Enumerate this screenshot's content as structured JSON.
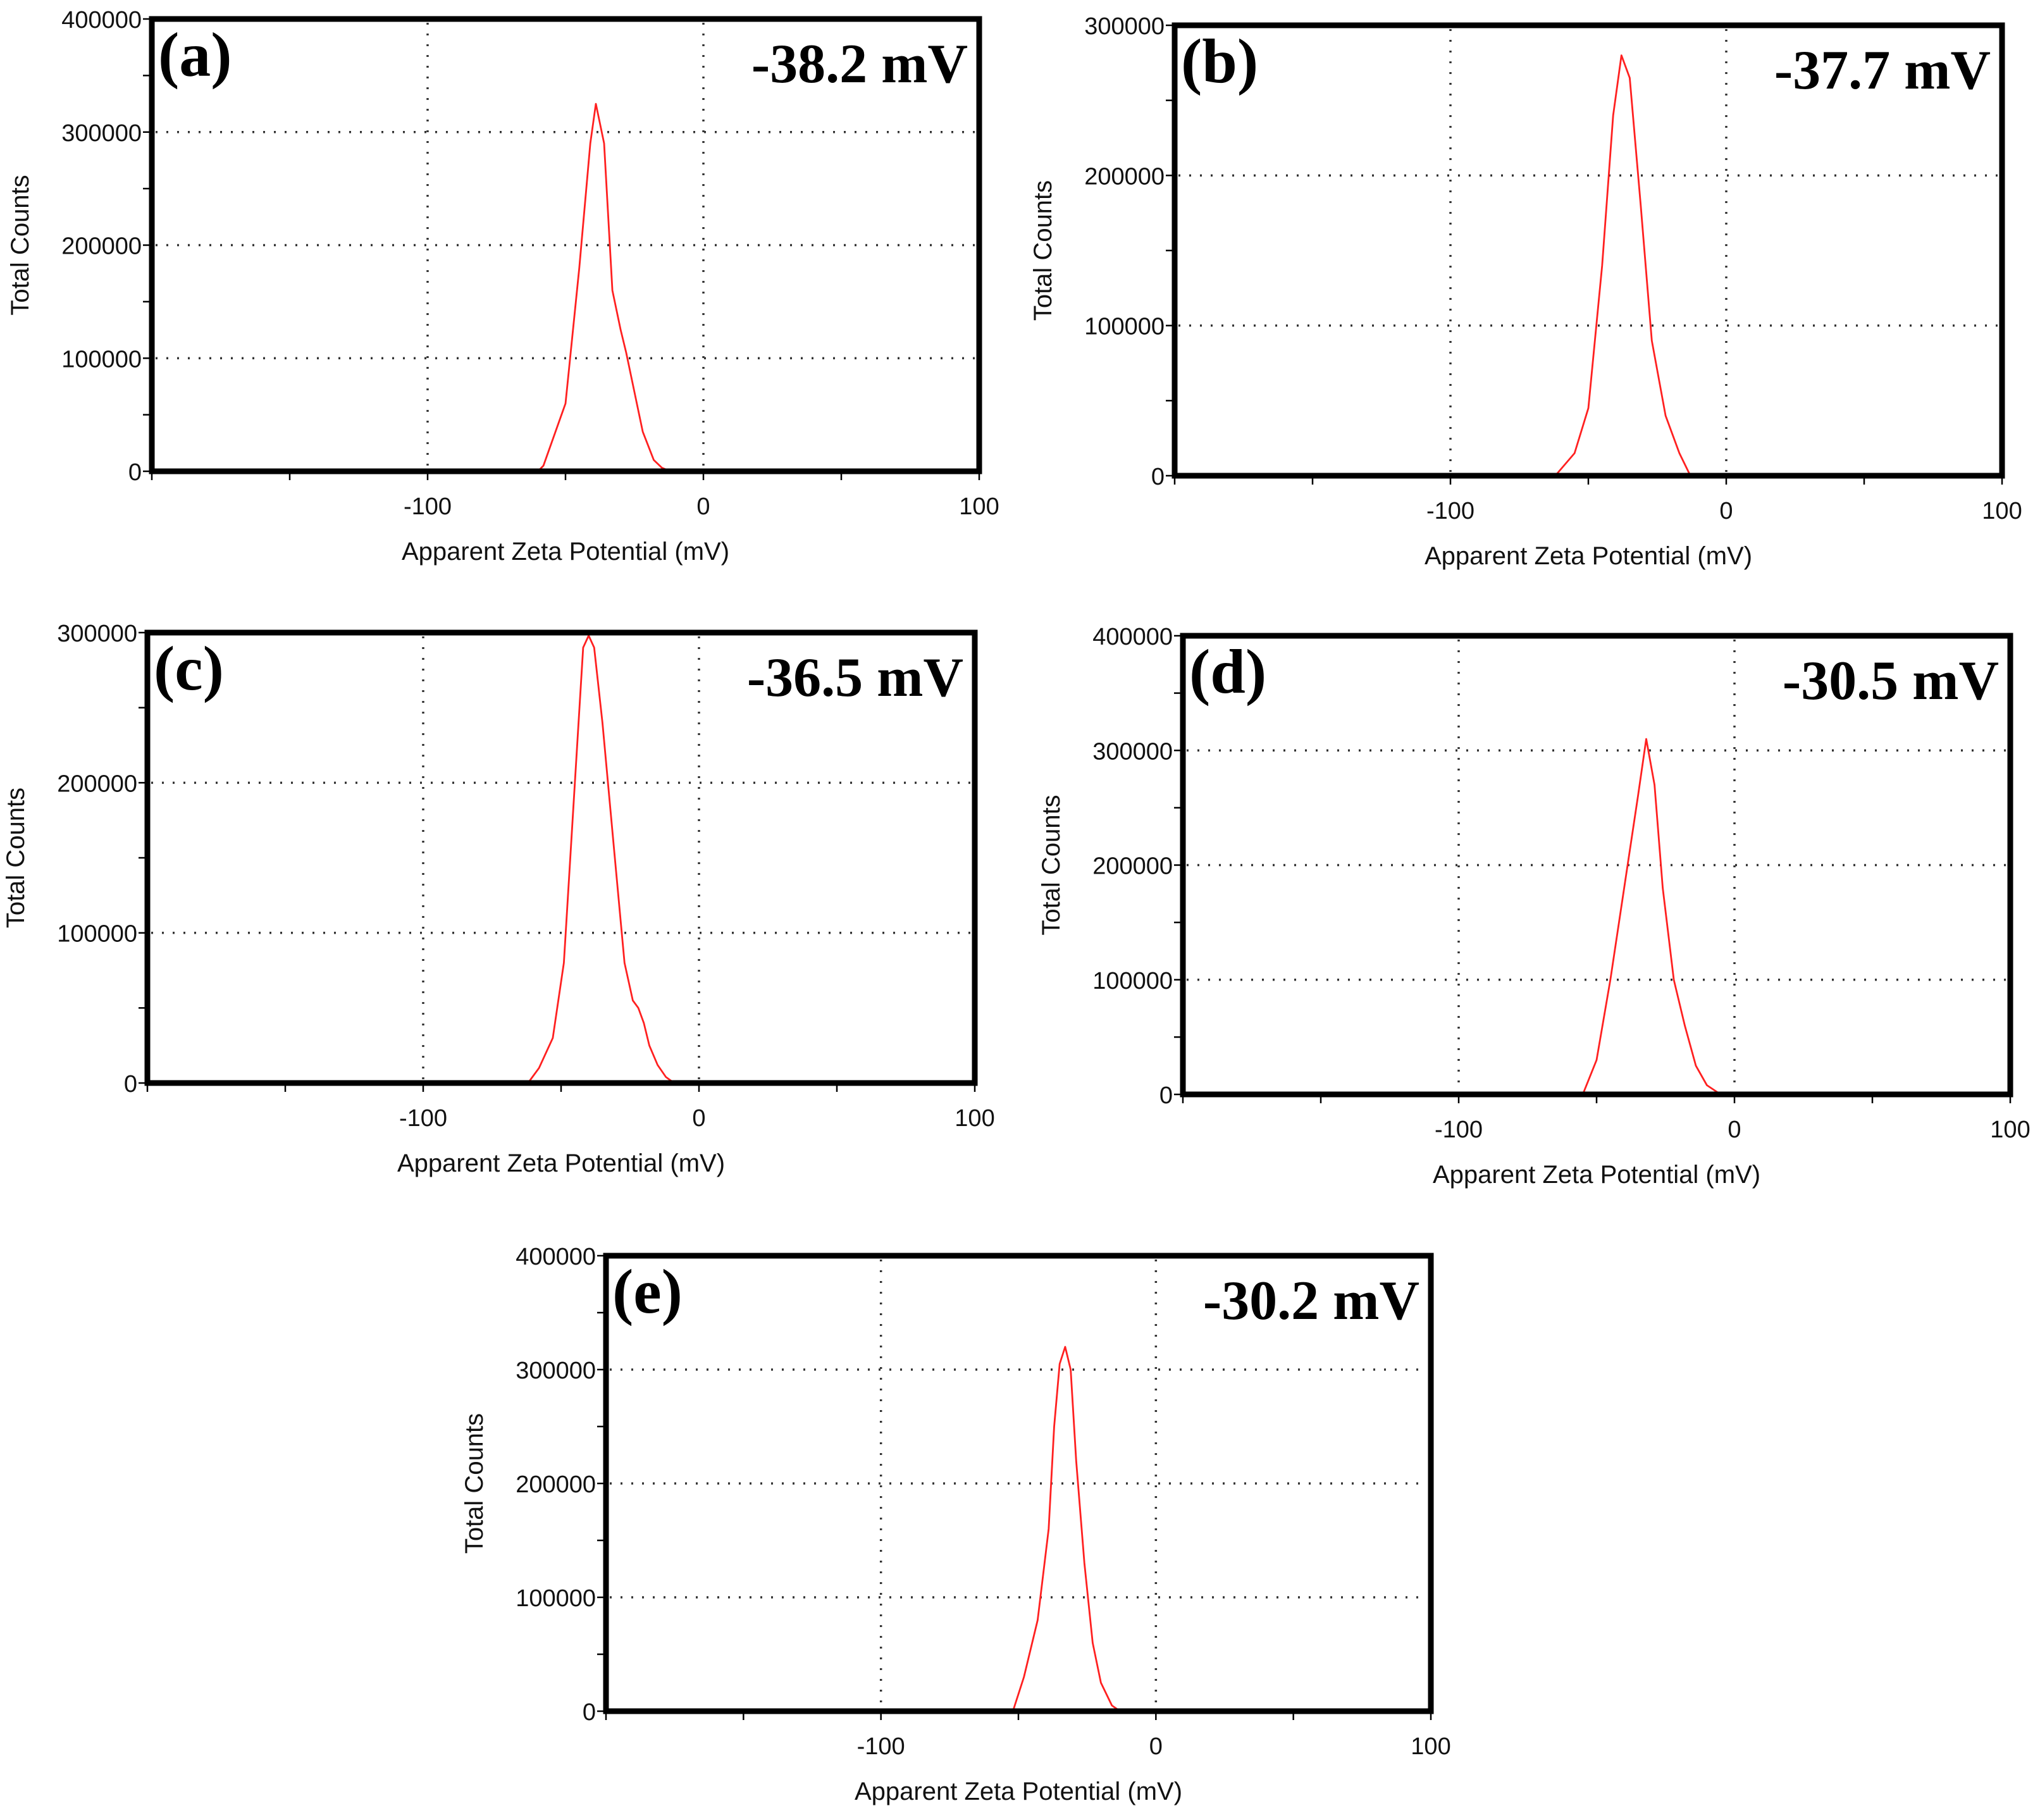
{
  "chart_data": [
    {
      "type": "line",
      "panel_label": "(a)",
      "annotation": "-38.2 mV",
      "xlabel": "Apparent Zeta Potential (mV)",
      "ylabel": "Total Counts",
      "xlim": [
        -200,
        100
      ],
      "ylim": [
        0,
        400000
      ],
      "xticks": [
        -100,
        0,
        100
      ],
      "yticks": [
        0,
        100000,
        200000,
        300000,
        400000
      ],
      "grid": true,
      "x": [
        -200,
        -60,
        -58,
        -50,
        -45,
        -41,
        -39,
        -36,
        -33,
        -30,
        -28,
        -25,
        -22,
        -18,
        -15,
        -12,
        100
      ],
      "y": [
        0,
        0,
        5000,
        60000,
        180000,
        290000,
        325000,
        290000,
        160000,
        125000,
        105000,
        70000,
        35000,
        10000,
        3000,
        0,
        0
      ]
    },
    {
      "type": "line",
      "panel_label": "(b)",
      "annotation": "-37.7 mV",
      "xlabel": "Apparent Zeta Potential (mV)",
      "ylabel": "Total Counts",
      "xlim": [
        -200,
        100
      ],
      "ylim": [
        0,
        300000
      ],
      "xticks": [
        -100,
        0,
        100
      ],
      "yticks": [
        0,
        100000,
        200000,
        300000
      ],
      "grid": true,
      "x": [
        -200,
        -62,
        -55,
        -50,
        -45,
        -41,
        -38,
        -35,
        -31,
        -27,
        -22,
        -17,
        -13,
        100
      ],
      "y": [
        0,
        0,
        15000,
        45000,
        140000,
        240000,
        280000,
        265000,
        180000,
        90000,
        40000,
        15000,
        0,
        0
      ]
    },
    {
      "type": "line",
      "panel_label": "(c)",
      "annotation": "-36.5 mV",
      "xlabel": "Apparent Zeta Potential (mV)",
      "ylabel": "Total Counts",
      "xlim": [
        -200,
        100
      ],
      "ylim": [
        0,
        300000
      ],
      "xticks": [
        -100,
        0,
        100
      ],
      "yticks": [
        0,
        100000,
        200000,
        300000
      ],
      "grid": true,
      "x": [
        -200,
        -62,
        -58,
        -53,
        -49,
        -45,
        -42,
        -40,
        -38,
        -35,
        -31,
        -27,
        -24,
        -22,
        -20,
        -18,
        -15,
        -12,
        -9,
        100
      ],
      "y": [
        0,
        0,
        10000,
        30000,
        80000,
        200000,
        290000,
        298000,
        290000,
        240000,
        160000,
        80000,
        55000,
        50000,
        40000,
        25000,
        12000,
        4000,
        0,
        0
      ]
    },
    {
      "type": "line",
      "panel_label": "(d)",
      "annotation": "-30.5 mV",
      "xlabel": "Apparent Zeta Potential (mV)",
      "ylabel": "Total Counts",
      "xlim": [
        -200,
        100
      ],
      "ylim": [
        0,
        400000
      ],
      "xticks": [
        -100,
        0,
        100
      ],
      "yticks": [
        0,
        100000,
        200000,
        300000,
        400000
      ],
      "grid": true,
      "x": [
        -200,
        -55,
        -50,
        -45,
        -40,
        -35,
        -32,
        -29,
        -26,
        -22,
        -18,
        -14,
        -10,
        -5,
        100
      ],
      "y": [
        0,
        0,
        30000,
        100000,
        180000,
        260000,
        310000,
        270000,
        180000,
        100000,
        60000,
        25000,
        8000,
        0,
        0
      ]
    },
    {
      "type": "line",
      "panel_label": "(e)",
      "annotation": "-30.2 mV",
      "xlabel": "Apparent Zeta Potential (mV)",
      "ylabel": "Total Counts",
      "xlim": [
        -200,
        100
      ],
      "ylim": [
        0,
        400000
      ],
      "xticks": [
        -100,
        0,
        100
      ],
      "yticks": [
        0,
        100000,
        200000,
        300000,
        400000
      ],
      "grid": true,
      "x": [
        -200,
        -52,
        -48,
        -43,
        -39,
        -37,
        -35,
        -33,
        -31,
        -29,
        -26,
        -23,
        -20,
        -16,
        -13,
        100
      ],
      "y": [
        0,
        0,
        30000,
        80000,
        160000,
        250000,
        305000,
        320000,
        300000,
        220000,
        130000,
        60000,
        25000,
        5000,
        0,
        0
      ]
    }
  ]
}
